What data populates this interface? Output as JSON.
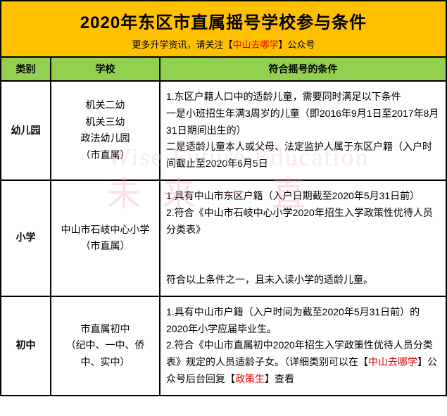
{
  "header": {
    "title": "2020年东区市直属摇号学校参与条件",
    "subtitle_pre": "更多升学资讯，请关注【",
    "subtitle_hl": "中山去哪学",
    "subtitle_post": "】公众号"
  },
  "columns": {
    "cat": "类别",
    "school": "学校",
    "cond": "符合摇号的条件"
  },
  "rows": [
    {
      "cat": "幼儿园",
      "school": "机关二幼\n机关三幼\n政法幼儿园\n（市直属）",
      "cond": "1.东区户籍人口中的适龄儿童，需要同时满足以下条件\n一是小班招生年满3周岁的儿童（即2016年9月1日至2017年8月31日期间出生的）\n二是适龄儿童本人或父母、法定监护人属于东区户籍（入户时间截止至2020年6月5日"
    },
    {
      "cat": "小学",
      "school": "中山市石岐中心小学（市直属）",
      "cond": "1.具有中山市东区户籍（入户日期截至2020年5月31日前）\n2.符合《中山市石岐中心小学2020年招生入学政策性优待人员分类表》\n\n符合以上条件之一，且未入读小学的适龄儿童。"
    },
    {
      "cat": "初中",
      "school": "市直属初中\n（纪中、一中、侨中、实中）",
      "cond_html": "1.具有中山市户籍（入户时间为截至2020年5月31日前）的2020年小学应届毕业生。\n2.符合《中山市直属初中2020年招生入学政策性优待人员分类表》规定的人员适龄子女。（详细类别可以在【<span class='hl'>中山去哪学</span>】公众号后台回复【<span class='hl'>政策生</span>】查看"
    }
  ],
  "watermark": {
    "en": "Wise Future Education",
    "cn": "未来一直"
  },
  "colors": {
    "header_bg": "#ffc000",
    "th_bg": "#92d050",
    "border": "#000000",
    "highlight": "#e60000",
    "wm": "#f4a6c4"
  }
}
